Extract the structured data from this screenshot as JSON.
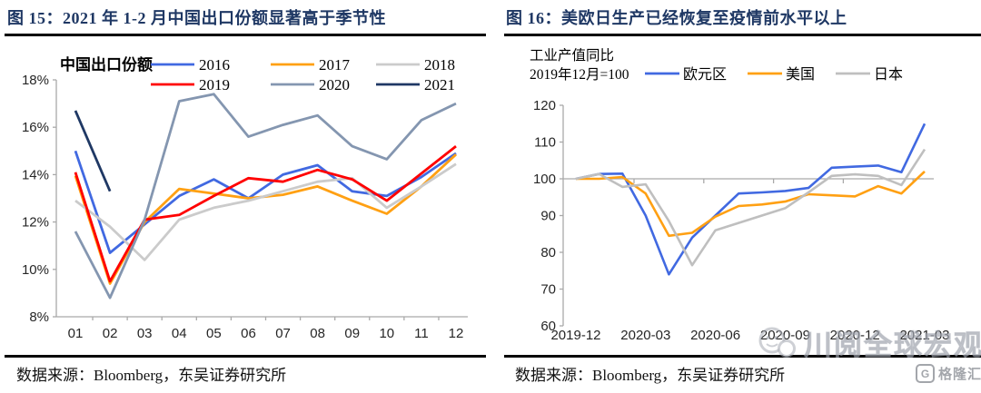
{
  "panels": [
    {
      "title": "图 15：2021 年 1-2 月中国出口份额显著高于季节性",
      "source": "数据来源：Bloomberg，东吴证券研究所"
    },
    {
      "title": "图 16：美欧日生产已经恢复至疫情前水平以上",
      "source": "数据来源：Bloomberg，东吴证券研究所"
    }
  ],
  "watermark": {
    "wechat_label": "川阅全球宏观",
    "logo_label": "格隆汇",
    "logo_letter": "G"
  },
  "colors": {
    "title_navy": "#1F3864",
    "axis_gray": "#A9A9A9",
    "blue": "#4169E1",
    "orange": "#FFA013",
    "light_gray": "#CBCBCB",
    "red": "#FF0000",
    "slate": "#8496B0",
    "navy": "#1F3864",
    "japan_gray": "#BFBFBF"
  },
  "chart_data": [
    {
      "type": "line",
      "title": "2021 年 1-2 月中国出口份额显著高于季节性",
      "legend_title": "中国出口份额",
      "categories": [
        "01",
        "02",
        "03",
        "04",
        "05",
        "06",
        "07",
        "08",
        "09",
        "10",
        "11",
        "12"
      ],
      "ylim": [
        8,
        18
      ],
      "ytick_step": 2,
      "y_suffix": "%",
      "grid": false,
      "legend_position": "top",
      "series": [
        {
          "name": "2016",
          "color": "#4169E1",
          "values": [
            15.0,
            10.7,
            11.9,
            13.1,
            13.8,
            13.0,
            14.0,
            14.4,
            13.3,
            13.1,
            13.9,
            14.9
          ]
        },
        {
          "name": "2017",
          "color": "#FFA013",
          "values": [
            13.95,
            9.4,
            12.0,
            13.4,
            13.2,
            13.0,
            13.15,
            13.5,
            12.9,
            12.35,
            13.5,
            14.85
          ]
        },
        {
          "name": "2018",
          "color": "#CBCBCB",
          "values": [
            12.9,
            11.8,
            10.4,
            12.1,
            12.6,
            12.9,
            13.3,
            13.7,
            13.85,
            12.6,
            13.5,
            14.45
          ]
        },
        {
          "name": "2019",
          "color": "#FF0000",
          "values": [
            14.1,
            9.5,
            12.1,
            12.3,
            13.1,
            13.85,
            13.7,
            14.2,
            13.8,
            12.9,
            14.05,
            15.2
          ]
        },
        {
          "name": "2020",
          "color": "#8496B0",
          "values": [
            11.6,
            8.8,
            12.1,
            17.1,
            17.4,
            15.6,
            16.1,
            16.5,
            15.2,
            14.65,
            16.3,
            17.0
          ]
        },
        {
          "name": "2021",
          "color": "#1F3864",
          "values": [
            16.7,
            13.3
          ]
        }
      ]
    },
    {
      "type": "line",
      "title": "美欧日生产已经恢复至疫情前水平以上",
      "unit_label_line1": "工业产值同比",
      "unit_label_line2": "2019年12月=100",
      "x": [
        "2019-12",
        "2020-01",
        "2020-02",
        "2020-03",
        "2020-04",
        "2020-05",
        "2020-06",
        "2020-07",
        "2020-08",
        "2020-09",
        "2020-10",
        "2020-11",
        "2020-12",
        "2021-01",
        "2021-02",
        "2021-03"
      ],
      "xtick_labels": [
        "2019-12",
        "2020-03",
        "2020-06",
        "2020-09",
        "2020-12",
        "2021-03"
      ],
      "ylim": [
        60,
        120
      ],
      "ytick_step": 10,
      "axis_cross_at": 100,
      "grid": false,
      "legend_position": "top",
      "series": [
        {
          "name": "欧元区",
          "color": "#4169E1",
          "values": [
            100,
            101.3,
            101.4,
            90,
            74,
            84,
            90,
            96,
            96.3,
            96.7,
            97.5,
            103,
            103.3,
            103.6,
            101.8,
            115
          ]
        },
        {
          "name": "美国",
          "color": "#FFA013",
          "values": [
            100,
            100,
            100.5,
            96,
            84.5,
            85.3,
            89.7,
            92.6,
            93,
            93.8,
            95.8,
            95.5,
            95.2,
            98,
            96,
            102
          ]
        },
        {
          "name": "日本",
          "color": "#BFBFBF",
          "values": [
            100,
            101.3,
            97.8,
            98.5,
            88.5,
            76.5,
            86,
            88,
            90,
            92,
            96.3,
            100.8,
            101.2,
            100.8,
            98.3,
            108
          ]
        }
      ]
    }
  ]
}
